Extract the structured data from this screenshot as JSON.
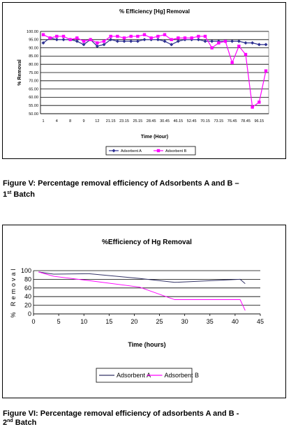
{
  "chart_data": [
    {
      "type": "line",
      "title": "% Efficiency [Hg] Removal",
      "x_label": "Time (Hour)",
      "y_label": "% Removal",
      "categories": [
        "1",
        null,
        "4",
        null,
        "8",
        null,
        "9",
        null,
        "12",
        null,
        "21.15",
        null,
        "23.15",
        null,
        "25.15",
        null,
        "28.45",
        null,
        "30.45",
        null,
        "46.15",
        null,
        "52.45",
        null,
        "70.15",
        null,
        "73.15",
        null,
        "76.45",
        null,
        "78.45",
        null,
        "96.15",
        null
      ],
      "series": [
        {
          "name": "Adsorbent A",
          "color": "#2e3192",
          "marker": "diamond",
          "values": [
            93,
            96,
            95,
            95,
            95,
            94,
            92,
            95,
            91,
            92,
            95,
            94,
            94,
            94,
            94,
            95,
            95,
            95,
            94,
            92,
            94,
            95,
            95,
            95,
            94,
            94,
            94,
            94,
            94,
            94,
            93,
            93,
            92,
            92
          ]
        },
        {
          "name": "Adsorbent B",
          "color": "#ff00ff",
          "marker": "square",
          "values": [
            98,
            96,
            97,
            97,
            95,
            96,
            94,
            95,
            93,
            94,
            97,
            97,
            96,
            97,
            97,
            98,
            96,
            97,
            98,
            95,
            96,
            96,
            96,
            97,
            97,
            90,
            93,
            94,
            81,
            91,
            86,
            54,
            57,
            76
          ]
        }
      ],
      "ylim": [
        50,
        100
      ],
      "yticks": [
        {
          "value": 50,
          "label": "50.00"
        },
        {
          "value": 55,
          "label": "55.00"
        },
        {
          "value": 60,
          "label": "60.00"
        },
        {
          "value": 65,
          "label": "65.00"
        },
        {
          "value": 70,
          "label": "70.00"
        },
        {
          "value": 75,
          "label": "75.00"
        },
        {
          "value": 80,
          "label": "80.00"
        },
        {
          "value": 85,
          "label": "85.00"
        },
        {
          "value": 90,
          "label": "90.00"
        },
        {
          "value": 95,
          "label": "95.00"
        },
        {
          "value": 100,
          "label": "100.00"
        }
      ],
      "grid": true,
      "legend": "bottom"
    },
    {
      "type": "line",
      "title": "%Efficiency of Hg Removal",
      "x_label": "Time (hours)",
      "y_label": "% Removal",
      "x": [
        1,
        4,
        11,
        21,
        28,
        41,
        42
      ],
      "series": [
        {
          "name": "Adsorbent A",
          "color": "#333366",
          "values": [
            97,
            92,
            93,
            82,
            73,
            80,
            70
          ]
        },
        {
          "name": "Adsorbent B",
          "color": "#ff00ff",
          "values": [
            97,
            87,
            77,
            62,
            33,
            33,
            8
          ]
        }
      ],
      "xlim": [
        0,
        45
      ],
      "xticks": [
        0,
        5,
        10,
        15,
        20,
        25,
        30,
        35,
        40,
        45
      ],
      "ylim": [
        0,
        100
      ],
      "yticks": [
        0,
        20,
        40,
        60,
        80,
        100
      ],
      "grid": true,
      "legend": "bottom"
    }
  ],
  "captions": [
    {
      "line1": "Figure V: Percentage removal efficiency of Adsorbents A and B –",
      "num": "1",
      "sup": "st",
      "rest": " Batch"
    },
    {
      "line1": "Figure VI: Percentage removal efficiency of adsorbents A and B -",
      "num": "2",
      "sup": "nd",
      "rest": " Batch"
    }
  ]
}
